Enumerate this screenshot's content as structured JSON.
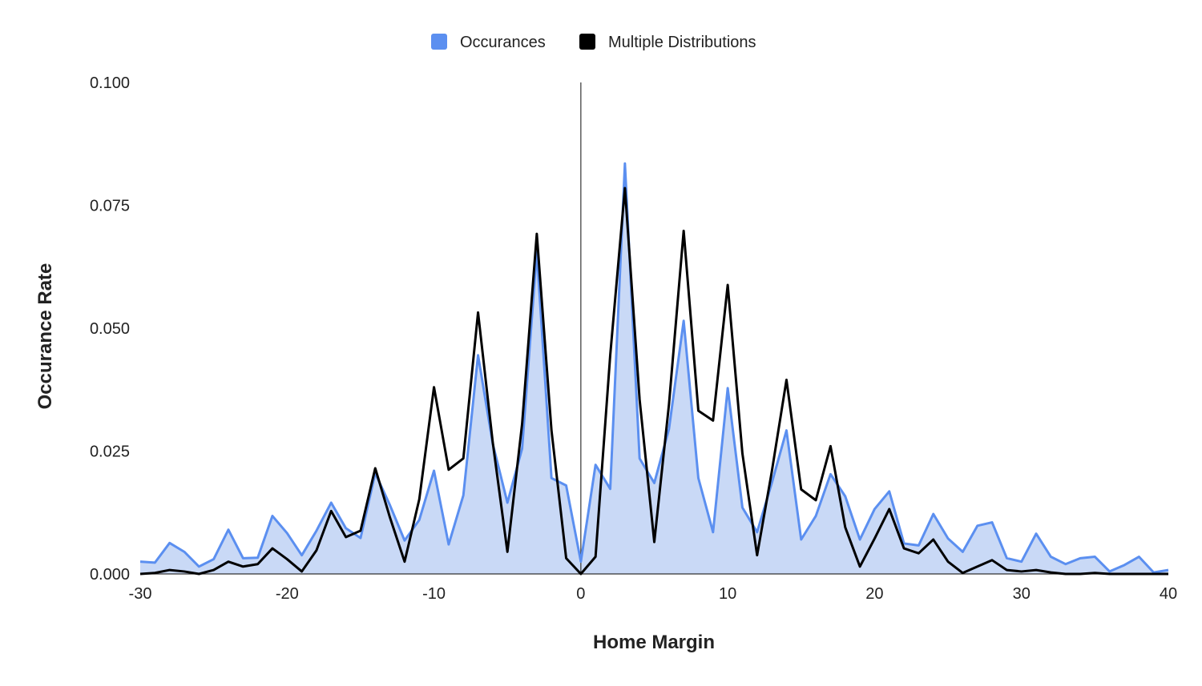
{
  "chart_data": {
    "type": "area",
    "title": "",
    "xlabel": "Home Margin",
    "ylabel": "Occurance Rate",
    "xlim": [
      -30,
      40
    ],
    "ylim": [
      0,
      0.1
    ],
    "x_ticks": [
      "-30",
      "-20",
      "-10",
      "0",
      "10",
      "20",
      "30",
      "40"
    ],
    "x_tick_values": [
      -30,
      -20,
      -10,
      0,
      10,
      20,
      30,
      40
    ],
    "y_ticks": [
      "0.000",
      "0.025",
      "0.050",
      "0.075",
      "0.100"
    ],
    "y_tick_values": [
      0,
      0.025,
      0.05,
      0.075,
      0.1
    ],
    "grid": false,
    "legend_position": "top-center",
    "x": [
      -30,
      -29,
      -28,
      -27,
      -26,
      -25,
      -24,
      -23,
      -22,
      -21,
      -20,
      -19,
      -18,
      -17,
      -16,
      -15,
      -14,
      -13,
      -12,
      -11,
      -10,
      -9,
      -8,
      -7,
      -6,
      -5,
      -4,
      -3,
      -2,
      -1,
      0,
      1,
      2,
      3,
      4,
      5,
      6,
      7,
      8,
      9,
      10,
      11,
      12,
      13,
      14,
      15,
      16,
      17,
      18,
      19,
      20,
      21,
      22,
      23,
      24,
      25,
      26,
      27,
      28,
      29,
      30,
      31,
      32,
      33,
      34,
      35,
      36,
      37,
      38,
      39,
      40
    ],
    "series": [
      {
        "name": "Occurances",
        "color": "#5b8ff0",
        "fill": "#c9d9f6",
        "style": "area",
        "values": [
          0.0025,
          0.0023,
          0.0063,
          0.0045,
          0.0015,
          0.003,
          0.009,
          0.0032,
          0.0033,
          0.0118,
          0.0083,
          0.0038,
          0.0088,
          0.0145,
          0.0093,
          0.0073,
          0.0205,
          0.014,
          0.0068,
          0.011,
          0.021,
          0.006,
          0.016,
          0.0445,
          0.0265,
          0.0145,
          0.0255,
          0.0655,
          0.0195,
          0.018,
          0.0025,
          0.0222,
          0.0173,
          0.0835,
          0.0235,
          0.0185,
          0.0295,
          0.0515,
          0.0195,
          0.0085,
          0.0378,
          0.0135,
          0.0085,
          0.0185,
          0.0292,
          0.007,
          0.0118,
          0.0203,
          0.0158,
          0.007,
          0.0132,
          0.0168,
          0.0062,
          0.0058,
          0.0122,
          0.0072,
          0.0045,
          0.0098,
          0.0105,
          0.0032,
          0.0025,
          0.0082,
          0.0035,
          0.002,
          0.0032,
          0.0035,
          0.0005,
          0.0018,
          0.0035,
          0.0003,
          0.0008
        ]
      },
      {
        "name": "Multiple Distributions",
        "color": "#000000",
        "style": "line",
        "values": [
          0,
          0.0002,
          0.0008,
          0.0005,
          0,
          0.0008,
          0.0025,
          0.0015,
          0.002,
          0.0052,
          0.003,
          0.0005,
          0.0048,
          0.0128,
          0.0075,
          0.0088,
          0.0215,
          0.0115,
          0.0025,
          0.0152,
          0.038,
          0.0212,
          0.0235,
          0.0532,
          0.0268,
          0.0045,
          0.0305,
          0.0692,
          0.0292,
          0.0032,
          0,
          0.0035,
          0.0445,
          0.0785,
          0.0355,
          0.0065,
          0.0345,
          0.0698,
          0.0332,
          0.0312,
          0.0588,
          0.0245,
          0.0038,
          0.0208,
          0.0395,
          0.0172,
          0.015,
          0.026,
          0.0095,
          0.0015,
          0.0072,
          0.0132,
          0.0052,
          0.0042,
          0.007,
          0.0025,
          0.0002,
          0.0015,
          0.0028,
          0.0008,
          0.0005,
          0.0008,
          0.0003,
          0,
          0,
          0.0002,
          0,
          0,
          0,
          0,
          0
        ]
      }
    ]
  }
}
